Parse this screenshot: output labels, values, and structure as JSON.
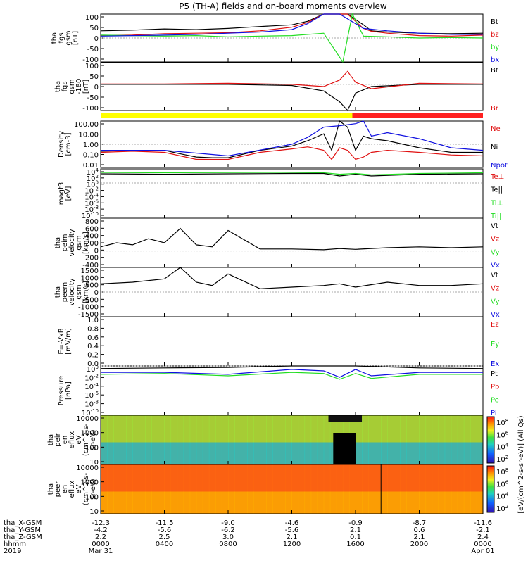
{
  "title": "P5 (TH-A) fields and on-board moments overview",
  "colors": {
    "black": "#000000",
    "red": "#e01010",
    "green": "#22dd22",
    "blue": "#1010e0",
    "yellow": "#ffff00",
    "modebar_red": "#ff2020",
    "bg": "#ffffff"
  },
  "panels": [
    {
      "id": "fgs-gsm",
      "ylabel": [
        "tha",
        "fgs",
        "gsm",
        "[nT]"
      ],
      "yticks": [
        "100",
        "50",
        "0",
        "-50",
        "-100"
      ],
      "ylog": false,
      "legend": [
        {
          "text": "Bt",
          "color": "black"
        },
        {
          "text": "bz",
          "color": "red"
        },
        {
          "text": "by",
          "color": "green"
        },
        {
          "text": "bx",
          "color": "blue"
        }
      ]
    },
    {
      "id": "fgs-gsm-dc",
      "ylabel": [
        "tha",
        "fgs",
        "gsm",
        "-180",
        "[nT]"
      ],
      "yticks": [
        "100",
        "50",
        "0",
        "-50",
        "-100"
      ],
      "ylog": false,
      "legend": [
        {
          "text": "Bt",
          "color": "black"
        },
        {
          "text": "Br",
          "color": "red"
        }
      ]
    },
    {
      "id": "density",
      "ylabel": [
        "Density",
        "[cm-3]"
      ],
      "yticks": [
        "100.00",
        "10.00",
        "1.00",
        "0.10",
        "0.01"
      ],
      "ylog": true,
      "legend": [
        {
          "text": "Ne",
          "color": "red"
        },
        {
          "text": "Ni",
          "color": "black"
        },
        {
          "text": "Npot",
          "color": "blue"
        }
      ]
    },
    {
      "id": "temperature",
      "ylabel": [
        "magt3",
        "[eV]"
      ],
      "yticks": [
        "10^4",
        "10^2",
        "10^0",
        "10^-2",
        "10^-4",
        "10^-6",
        "10^-8",
        "10^-10"
      ],
      "ylog": true,
      "legend": [
        {
          "text": "Te⊥",
          "color": "red"
        },
        {
          "text": "Te||",
          "color": "black"
        },
        {
          "text": "Ti⊥",
          "color": "green"
        },
        {
          "text": "Ti||",
          "color": "green"
        }
      ]
    },
    {
      "id": "peim-velocity",
      "ylabel": [
        "tha",
        "peim",
        "velocity",
        "gsm",
        "[km/s]"
      ],
      "yticks": [
        "800",
        "600",
        "400",
        "200",
        "0",
        "-200",
        "-400"
      ],
      "ylog": false,
      "legend": [
        {
          "text": "Vt",
          "color": "black"
        },
        {
          "text": "Vz",
          "color": "red"
        },
        {
          "text": "Vy",
          "color": "green"
        },
        {
          "text": "Vx",
          "color": "blue"
        }
      ]
    },
    {
      "id": "peem-velocity",
      "ylabel": [
        "tha",
        "peem",
        "velocity",
        "gsm",
        "[km/s]"
      ],
      "yticks": [
        "1500",
        "1000",
        "500",
        "0",
        "-500",
        "-1000",
        "-1500"
      ],
      "ylog": false,
      "legend": [
        {
          "text": "Vt",
          "color": "black"
        },
        {
          "text": "Vz",
          "color": "red"
        },
        {
          "text": "Vy",
          "color": "green"
        },
        {
          "text": "Vx",
          "color": "blue"
        }
      ]
    },
    {
      "id": "efield",
      "ylabel": [
        "E=-VxB",
        "[mV/m]"
      ],
      "yticks": [
        "1.0",
        "0.8",
        "0.6",
        "0.4",
        "0.2",
        "0.0"
      ],
      "ylog": false,
      "legend": [
        {
          "text": "Ez",
          "color": "red"
        },
        {
          "text": "Ey",
          "color": "green"
        },
        {
          "text": "Ex",
          "color": "blue"
        }
      ]
    },
    {
      "id": "pressure",
      "ylabel": [
        "Pressure",
        "[nPa]"
      ],
      "yticks": [
        "10^0",
        "10^-2",
        "10^-4",
        "10^-6",
        "10^-8",
        "10^-10"
      ],
      "ylog": true,
      "legend": [
        {
          "text": "Pt",
          "color": "black"
        },
        {
          "text": "Pb",
          "color": "red"
        },
        {
          "text": "Pe",
          "color": "green"
        },
        {
          "text": "Pi",
          "color": "blue"
        }
      ]
    },
    {
      "id": "peir-spectrogram",
      "ylabel": [
        "tha",
        "peir",
        "en",
        "eflux",
        "eV",
        "(cm^2-s-",
        "sr-eV)"
      ],
      "yticks": [
        "10000",
        "1000",
        "100",
        "10"
      ],
      "ylog": true,
      "spectrogram": true
    },
    {
      "id": "peer-spectrogram",
      "ylabel": [
        "tha",
        "peer",
        "en",
        "eflux",
        "eV",
        "(cm^2-s-",
        "sr-eV)"
      ],
      "yticks": [
        "10000",
        "1000",
        "100",
        "10"
      ],
      "ylog": true,
      "spectrogram": true
    }
  ],
  "colorbar": {
    "ticks": [
      "10^8",
      "10^6",
      "10^4",
      "10^2"
    ],
    "label": "[eV/(cm^2-s-sr-eV)] (All Qs)"
  },
  "xaxis": {
    "rows": [
      {
        "label": "tha_X-GSM",
        "values": [
          "-12.3",
          "-11.5",
          "-9.0",
          "-4.6",
          "-0.9",
          "-8.7",
          "-11.6"
        ]
      },
      {
        "label": "tha_Y-GSM",
        "values": [
          "-4.2",
          "-5.6",
          "-6.2",
          "-5.6",
          "2.1",
          "0.6",
          "-2.1"
        ]
      },
      {
        "label": "tha_Z-GSM",
        "values": [
          "2.2",
          "2.5",
          "3.0",
          "2.1",
          "0.1",
          "2.1",
          "2.4"
        ]
      },
      {
        "label": "hhmm",
        "values": [
          "0000",
          "0400",
          "0800",
          "1200",
          "1600",
          "2000",
          "0000"
        ]
      },
      {
        "label": "2019",
        "values": [
          "Mar 31",
          "",
          "",
          "",
          "",
          "",
          "Apr 01"
        ]
      }
    ]
  },
  "chart_data": {
    "type": "line",
    "title": "P5 (TH-A) fields and on-board moments overview",
    "x_hours": [
      0,
      4,
      8,
      12,
      16,
      20,
      24
    ],
    "x_ticklabels": [
      "0000",
      "0400",
      "0800",
      "1200",
      "1600",
      "2000",
      "0000"
    ],
    "series": [
      {
        "panel": "fgs-gsm",
        "name": "Bt",
        "x": [
          0,
          2,
          4,
          6,
          8,
          10,
          12,
          13,
          14,
          15.5,
          16.5,
          17,
          18,
          20,
          22,
          24
        ],
        "y": [
          30,
          33,
          38,
          35,
          40,
          48,
          55,
          70,
          100,
          100,
          55,
          30,
          25,
          20,
          18,
          20
        ]
      },
      {
        "panel": "fgs-gsm",
        "name": "bz",
        "x": [
          0,
          2,
          4,
          6,
          8,
          10,
          12,
          13,
          14,
          15.5,
          16.5,
          17,
          18,
          20,
          22,
          24
        ],
        "y": [
          10,
          12,
          18,
          20,
          22,
          30,
          45,
          65,
          100,
          100,
          40,
          28,
          20,
          10,
          8,
          12
        ]
      },
      {
        "panel": "fgs-gsm",
        "name": "by",
        "x": [
          0,
          2,
          4,
          6,
          8,
          10,
          12,
          14,
          15.2,
          15.8,
          16.5,
          18,
          20,
          22,
          24
        ],
        "y": [
          12,
          10,
          8,
          10,
          5,
          8,
          10,
          20,
          -100,
          100,
          8,
          5,
          0,
          2,
          0
        ]
      },
      {
        "panel": "fgs-gsm",
        "name": "bx",
        "x": [
          0,
          2,
          4,
          6,
          8,
          10,
          12,
          13,
          14,
          15,
          16.5,
          18,
          20,
          22,
          24
        ],
        "y": [
          8,
          10,
          12,
          15,
          20,
          25,
          35,
          60,
          100,
          100,
          40,
          30,
          20,
          15,
          15
        ]
      },
      {
        "panel": "fgs-gsm-dc",
        "name": "Bt",
        "x": [
          0,
          4,
          8,
          12,
          14,
          15,
          15.5,
          16,
          17,
          20,
          24
        ],
        "y": [
          0,
          0,
          0,
          -5,
          -30,
          -80,
          -120,
          -40,
          -10,
          0,
          0
        ]
      },
      {
        "panel": "fgs-gsm-dc",
        "name": "Br",
        "x": [
          0,
          4,
          8,
          12,
          14,
          15,
          15.5,
          16,
          17,
          20,
          24
        ],
        "y": [
          2,
          2,
          5,
          0,
          -10,
          20,
          60,
          10,
          -20,
          5,
          2
        ]
      },
      {
        "panel": "density",
        "name": "Ne",
        "x": [
          0,
          2,
          4,
          5,
          6,
          7,
          8,
          10,
          12,
          13,
          14,
          14.5,
          15,
          15.5,
          16,
          16.5,
          17,
          18,
          20,
          22,
          24
        ],
        "y": [
          0.2,
          0.25,
          0.2,
          0.1,
          0.05,
          0.05,
          0.05,
          0.2,
          0.4,
          0.6,
          0.3,
          0.05,
          0.5,
          0.3,
          0.05,
          0.08,
          0.2,
          0.3,
          0.2,
          0.12,
          0.1
        ]
      },
      {
        "panel": "density",
        "name": "Ni",
        "x": [
          0,
          2,
          4,
          5,
          6,
          7,
          8,
          10,
          12,
          13,
          14,
          14.5,
          15,
          15.5,
          16,
          16.5,
          17,
          18,
          20,
          22,
          24
        ],
        "y": [
          0.25,
          0.3,
          0.3,
          0.15,
          0.08,
          0.07,
          0.07,
          0.3,
          0.7,
          2,
          8,
          0.3,
          100,
          30,
          0.3,
          5,
          3,
          2,
          0.5,
          0.2,
          0.2
        ]
      },
      {
        "panel": "density",
        "name": "Npot",
        "x": [
          0,
          4,
          8,
          12,
          13,
          14,
          15,
          16,
          16.5,
          17,
          18,
          20,
          22,
          24
        ],
        "y": [
          0.3,
          0.3,
          0.1,
          1,
          4,
          30,
          40,
          60,
          100,
          5,
          10,
          3,
          0.5,
          0.3
        ]
      },
      {
        "panel": "temperature",
        "name": "Ti||",
        "x": [
          0,
          4,
          8,
          12,
          14,
          15,
          16,
          17,
          20,
          24
        ],
        "y": [
          1000,
          800,
          900,
          1000,
          800,
          300,
          500,
          200,
          500,
          800
        ]
      },
      {
        "panel": "temperature",
        "name": "Te||",
        "x": [
          0,
          4,
          8,
          12,
          14,
          15,
          16,
          17,
          20,
          24
        ],
        "y": [
          400,
          300,
          400,
          500,
          500,
          100,
          300,
          100,
          300,
          400
        ]
      },
      {
        "panel": "peim-velocity",
        "name": "Vt",
        "x": [
          0,
          1,
          2,
          3,
          4,
          5,
          6,
          7,
          8,
          10,
          12,
          14,
          15,
          16,
          18,
          20,
          22,
          24
        ],
        "y": [
          100,
          200,
          150,
          300,
          200,
          550,
          150,
          100,
          500,
          50,
          50,
          30,
          60,
          40,
          80,
          100,
          80,
          100
        ]
      },
      {
        "panel": "peem-velocity",
        "name": "Vt",
        "x": [
          0,
          2,
          4,
          5,
          6,
          7,
          8,
          10,
          12,
          14,
          15,
          16,
          18,
          20,
          22,
          24
        ],
        "y": [
          500,
          600,
          800,
          1500,
          600,
          400,
          1100,
          200,
          300,
          400,
          500,
          300,
          600,
          400,
          400,
          500
        ]
      },
      {
        "panel": "pressure",
        "name": "Pt",
        "x": [
          0,
          4,
          8,
          12,
          14,
          15,
          16,
          17,
          20,
          24
        ],
        "y": [
          0.3,
          0.4,
          0.5,
          1,
          2,
          1.5,
          1,
          0.8,
          0.4,
          0.3
        ]
      },
      {
        "panel": "pressure",
        "name": "Pi",
        "x": [
          0,
          4,
          8,
          12,
          14,
          15,
          16,
          17,
          20,
          24
        ],
        "y": [
          0.05,
          0.05,
          0.02,
          0.2,
          0.1,
          0.005,
          0.2,
          0.01,
          0.05,
          0.05
        ]
      },
      {
        "panel": "pressure",
        "name": "Pe",
        "x": [
          0,
          4,
          8,
          12,
          14,
          15,
          16,
          17,
          20,
          24
        ],
        "y": [
          0.02,
          0.03,
          0.01,
          0.05,
          0.03,
          0.002,
          0.03,
          0.003,
          0.02,
          0.02
        ]
      }
    ]
  }
}
